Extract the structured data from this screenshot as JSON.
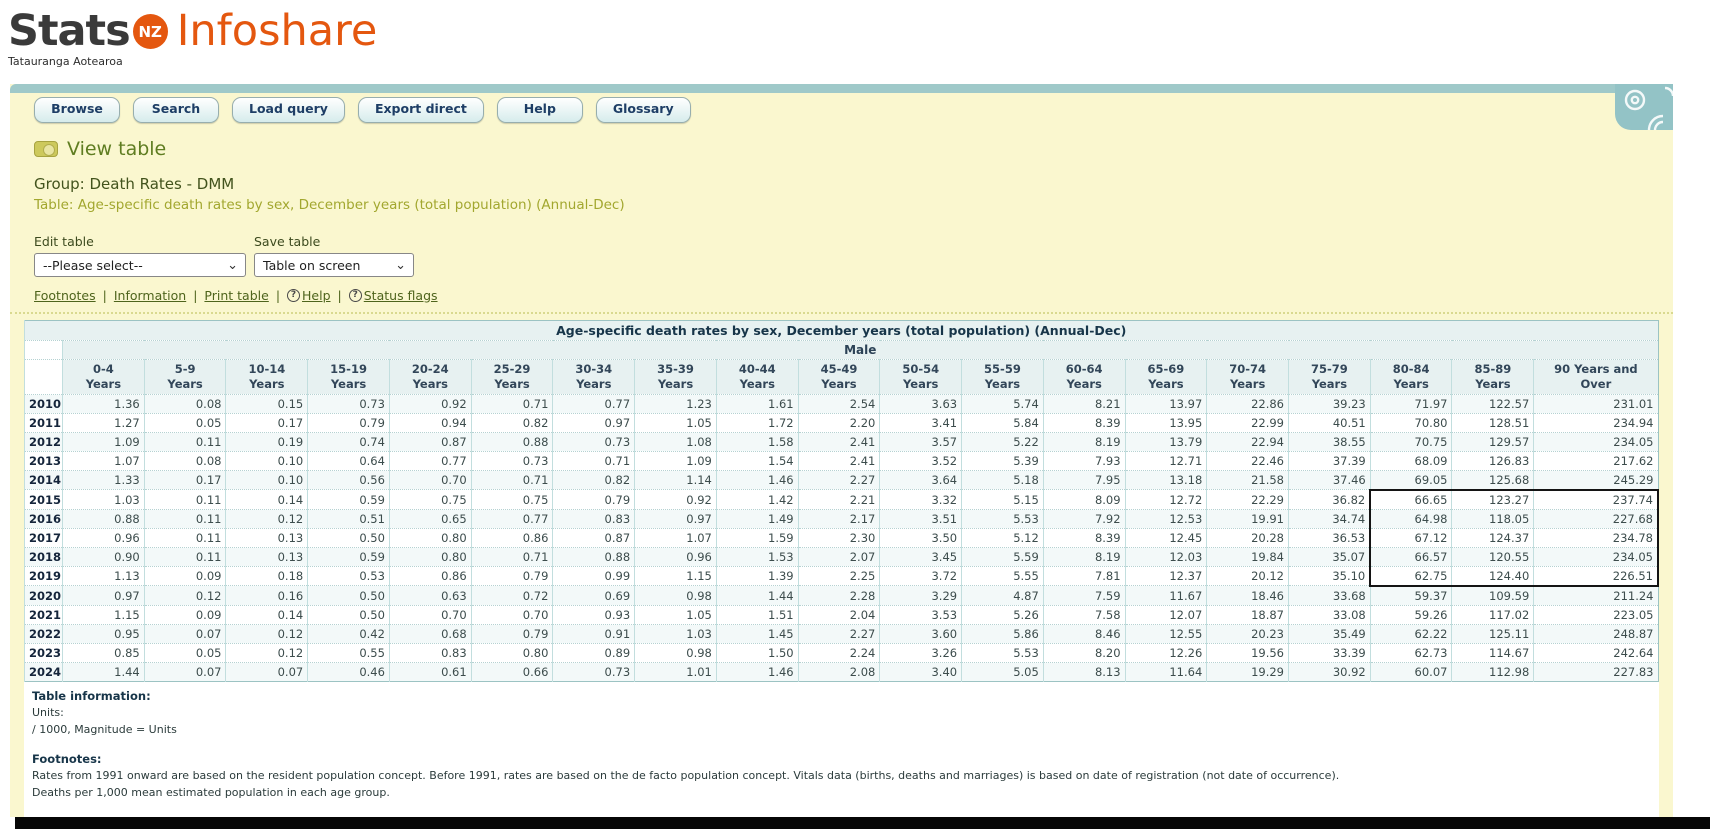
{
  "brand": {
    "stats": "Stats",
    "nz_badge": "NZ",
    "infoshare": "Infoshare",
    "tagline": "Tatauranga Aotearoa"
  },
  "colors": {
    "orange": "#e4570f",
    "teal_bar": "#9fc9c9",
    "content_bg": "#faf7cf",
    "header_row_bg": "#e7f1f1",
    "link_green": "#4e641c",
    "selection_border": "#141414"
  },
  "nav": {
    "tabs": [
      "Browse",
      "Search",
      "Load query",
      "Export direct",
      "Help",
      "Glossary"
    ]
  },
  "page": {
    "heading": "View table",
    "group_line": "Group: Death Rates - DMM",
    "table_line": "Table: Age-specific death rates by sex, December years (total population) (Annual-Dec)"
  },
  "controls": {
    "edit_label": "Edit table",
    "save_label": "Save table",
    "edit_value": "--Please select--",
    "save_value": "Table on screen",
    "links": [
      {
        "label": "Footnotes",
        "icon": false
      },
      {
        "label": "Information",
        "icon": false
      },
      {
        "label": "Print table",
        "icon": false
      },
      {
        "label": "Help",
        "icon": true
      },
      {
        "label": "Status flags",
        "icon": true
      }
    ]
  },
  "table": {
    "title": "Age-specific death rates by sex, December years (total population) (Annual-Dec)",
    "sex_header": "Male",
    "columns": [
      {
        "range": "0-4",
        "unit": "Years"
      },
      {
        "range": "5-9",
        "unit": "Years"
      },
      {
        "range": "10-14",
        "unit": "Years"
      },
      {
        "range": "15-19",
        "unit": "Years"
      },
      {
        "range": "20-24",
        "unit": "Years"
      },
      {
        "range": "25-29",
        "unit": "Years"
      },
      {
        "range": "30-34",
        "unit": "Years"
      },
      {
        "range": "35-39",
        "unit": "Years"
      },
      {
        "range": "40-44",
        "unit": "Years"
      },
      {
        "range": "45-49",
        "unit": "Years"
      },
      {
        "range": "50-54",
        "unit": "Years"
      },
      {
        "range": "55-59",
        "unit": "Years"
      },
      {
        "range": "60-64",
        "unit": "Years"
      },
      {
        "range": "65-69",
        "unit": "Years"
      },
      {
        "range": "70-74",
        "unit": "Years"
      },
      {
        "range": "75-79",
        "unit": "Years"
      },
      {
        "range": "80-84",
        "unit": "Years"
      },
      {
        "range": "85-89",
        "unit": "Years"
      },
      {
        "range": "90 Years and",
        "unit": "Over"
      }
    ],
    "rows": [
      {
        "year": "2010",
        "values": [
          "1.36",
          "0.08",
          "0.15",
          "0.73",
          "0.92",
          "0.71",
          "0.77",
          "1.23",
          "1.61",
          "2.54",
          "3.63",
          "5.74",
          "8.21",
          "13.97",
          "22.86",
          "39.23",
          "71.97",
          "122.57",
          "231.01"
        ]
      },
      {
        "year": "2011",
        "values": [
          "1.27",
          "0.05",
          "0.17",
          "0.79",
          "0.94",
          "0.82",
          "0.97",
          "1.05",
          "1.72",
          "2.20",
          "3.41",
          "5.84",
          "8.39",
          "13.95",
          "22.99",
          "40.51",
          "70.80",
          "128.51",
          "234.94"
        ]
      },
      {
        "year": "2012",
        "values": [
          "1.09",
          "0.11",
          "0.19",
          "0.74",
          "0.87",
          "0.88",
          "0.73",
          "1.08",
          "1.58",
          "2.41",
          "3.57",
          "5.22",
          "8.19",
          "13.79",
          "22.94",
          "38.55",
          "70.75",
          "129.57",
          "234.05"
        ]
      },
      {
        "year": "2013",
        "values": [
          "1.07",
          "0.08",
          "0.10",
          "0.64",
          "0.77",
          "0.73",
          "0.71",
          "1.09",
          "1.54",
          "2.41",
          "3.52",
          "5.39",
          "7.93",
          "12.71",
          "22.46",
          "37.39",
          "68.09",
          "126.83",
          "217.62"
        ]
      },
      {
        "year": "2014",
        "values": [
          "1.33",
          "0.17",
          "0.10",
          "0.56",
          "0.70",
          "0.71",
          "0.82",
          "1.14",
          "1.46",
          "2.27",
          "3.64",
          "5.18",
          "7.95",
          "13.18",
          "21.58",
          "37.46",
          "69.05",
          "125.68",
          "245.29"
        ]
      },
      {
        "year": "2015",
        "values": [
          "1.03",
          "0.11",
          "0.14",
          "0.59",
          "0.75",
          "0.75",
          "0.79",
          "0.92",
          "1.42",
          "2.21",
          "3.32",
          "5.15",
          "8.09",
          "12.72",
          "22.29",
          "36.82",
          "66.65",
          "123.27",
          "237.74"
        ]
      },
      {
        "year": "2016",
        "values": [
          "0.88",
          "0.11",
          "0.12",
          "0.51",
          "0.65",
          "0.77",
          "0.83",
          "0.97",
          "1.49",
          "2.17",
          "3.51",
          "5.53",
          "7.92",
          "12.53",
          "19.91",
          "34.74",
          "64.98",
          "118.05",
          "227.68"
        ]
      },
      {
        "year": "2017",
        "values": [
          "0.96",
          "0.11",
          "0.13",
          "0.50",
          "0.80",
          "0.86",
          "0.87",
          "1.07",
          "1.59",
          "2.30",
          "3.50",
          "5.12",
          "8.39",
          "12.45",
          "20.28",
          "36.53",
          "67.12",
          "124.37",
          "234.78"
        ]
      },
      {
        "year": "2018",
        "values": [
          "0.90",
          "0.11",
          "0.13",
          "0.59",
          "0.80",
          "0.71",
          "0.88",
          "0.96",
          "1.53",
          "2.07",
          "3.45",
          "5.59",
          "8.19",
          "12.03",
          "19.84",
          "35.07",
          "66.57",
          "120.55",
          "234.05"
        ]
      },
      {
        "year": "2019",
        "values": [
          "1.13",
          "0.09",
          "0.18",
          "0.53",
          "0.86",
          "0.79",
          "0.99",
          "1.15",
          "1.39",
          "2.25",
          "3.72",
          "5.55",
          "7.81",
          "12.37",
          "20.12",
          "35.10",
          "62.75",
          "124.40",
          "226.51"
        ]
      },
      {
        "year": "2020",
        "values": [
          "0.97",
          "0.12",
          "0.16",
          "0.50",
          "0.63",
          "0.72",
          "0.69",
          "0.98",
          "1.44",
          "2.28",
          "3.29",
          "4.87",
          "7.59",
          "11.67",
          "18.46",
          "33.68",
          "59.37",
          "109.59",
          "211.24"
        ]
      },
      {
        "year": "2021",
        "values": [
          "1.15",
          "0.09",
          "0.14",
          "0.50",
          "0.70",
          "0.70",
          "0.93",
          "1.05",
          "1.51",
          "2.04",
          "3.53",
          "5.26",
          "7.58",
          "12.07",
          "18.87",
          "33.08",
          "59.26",
          "117.02",
          "223.05"
        ]
      },
      {
        "year": "2022",
        "values": [
          "0.95",
          "0.07",
          "0.12",
          "0.42",
          "0.68",
          "0.79",
          "0.91",
          "1.03",
          "1.45",
          "2.27",
          "3.60",
          "5.86",
          "8.46",
          "12.55",
          "20.23",
          "35.49",
          "62.22",
          "125.11",
          "248.87"
        ]
      },
      {
        "year": "2023",
        "values": [
          "0.85",
          "0.05",
          "0.12",
          "0.55",
          "0.83",
          "0.80",
          "0.89",
          "0.98",
          "1.50",
          "2.24",
          "3.26",
          "5.53",
          "8.20",
          "12.26",
          "19.56",
          "33.39",
          "62.73",
          "114.67",
          "242.64"
        ]
      },
      {
        "year": "2024",
        "values": [
          "1.44",
          "0.07",
          "0.07",
          "0.46",
          "0.61",
          "0.66",
          "0.73",
          "1.01",
          "1.46",
          "2.08",
          "3.40",
          "5.05",
          "8.13",
          "11.64",
          "19.29",
          "30.92",
          "60.07",
          "112.98",
          "227.83"
        ]
      }
    ],
    "selection": {
      "first_row_year": "2015",
      "last_row_year": "2019",
      "first_col_index": 16,
      "last_col_index": 18
    }
  },
  "footer": {
    "info_heading": "Table information:",
    "units_label": "Units:",
    "units_value": "/ 1000, Magnitude = Units",
    "footnotes_heading": "Footnotes:",
    "footnote_1": "Rates from 1991 onward are based on the resident population concept. Before 1991, rates are based on the de facto population concept. Vitals data (births, deaths and marriages) is based on date of registration (not date of occurrence).",
    "footnote_2": "Deaths per 1,000 mean estimated population in each age group."
  }
}
